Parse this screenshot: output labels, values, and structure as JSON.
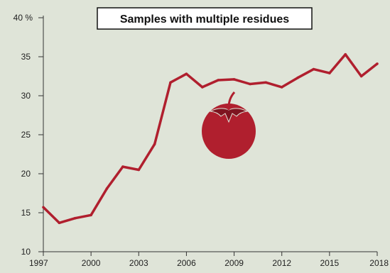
{
  "chart_data": {
    "type": "line",
    "title": "Samples with multiple residues",
    "xlabel": "",
    "ylabel": "",
    "x": [
      1997,
      1998,
      1999,
      2000,
      2001,
      2002,
      2003,
      2004,
      2005,
      2006,
      2007,
      2008,
      2009,
      2010,
      2011,
      2012,
      2013,
      2014,
      2015,
      2016,
      2017,
      2018
    ],
    "series": [
      {
        "values": [
          15.7,
          13.7,
          14.3,
          14.7,
          18.1,
          20.9,
          20.5,
          23.8,
          31.7,
          32.8,
          31.1,
          32.0,
          32.1,
          31.5,
          31.7,
          31.1,
          32.3,
          33.4,
          32.9,
          35.3,
          32.5,
          34.1
        ]
      }
    ],
    "xlim": [
      1997,
      2018
    ],
    "ylim": [
      10,
      40
    ],
    "xticks": [
      "1997",
      "2000",
      "2003",
      "2006",
      "2009",
      "2012",
      "2015",
      "2018"
    ],
    "yticks": [
      "10",
      "15",
      "20",
      "25",
      "30",
      "35",
      "40 %"
    ],
    "grid": false,
    "line_color": "#b01f2e",
    "illustration": "tomato-icon",
    "illustration_color": "#b01f2e"
  }
}
